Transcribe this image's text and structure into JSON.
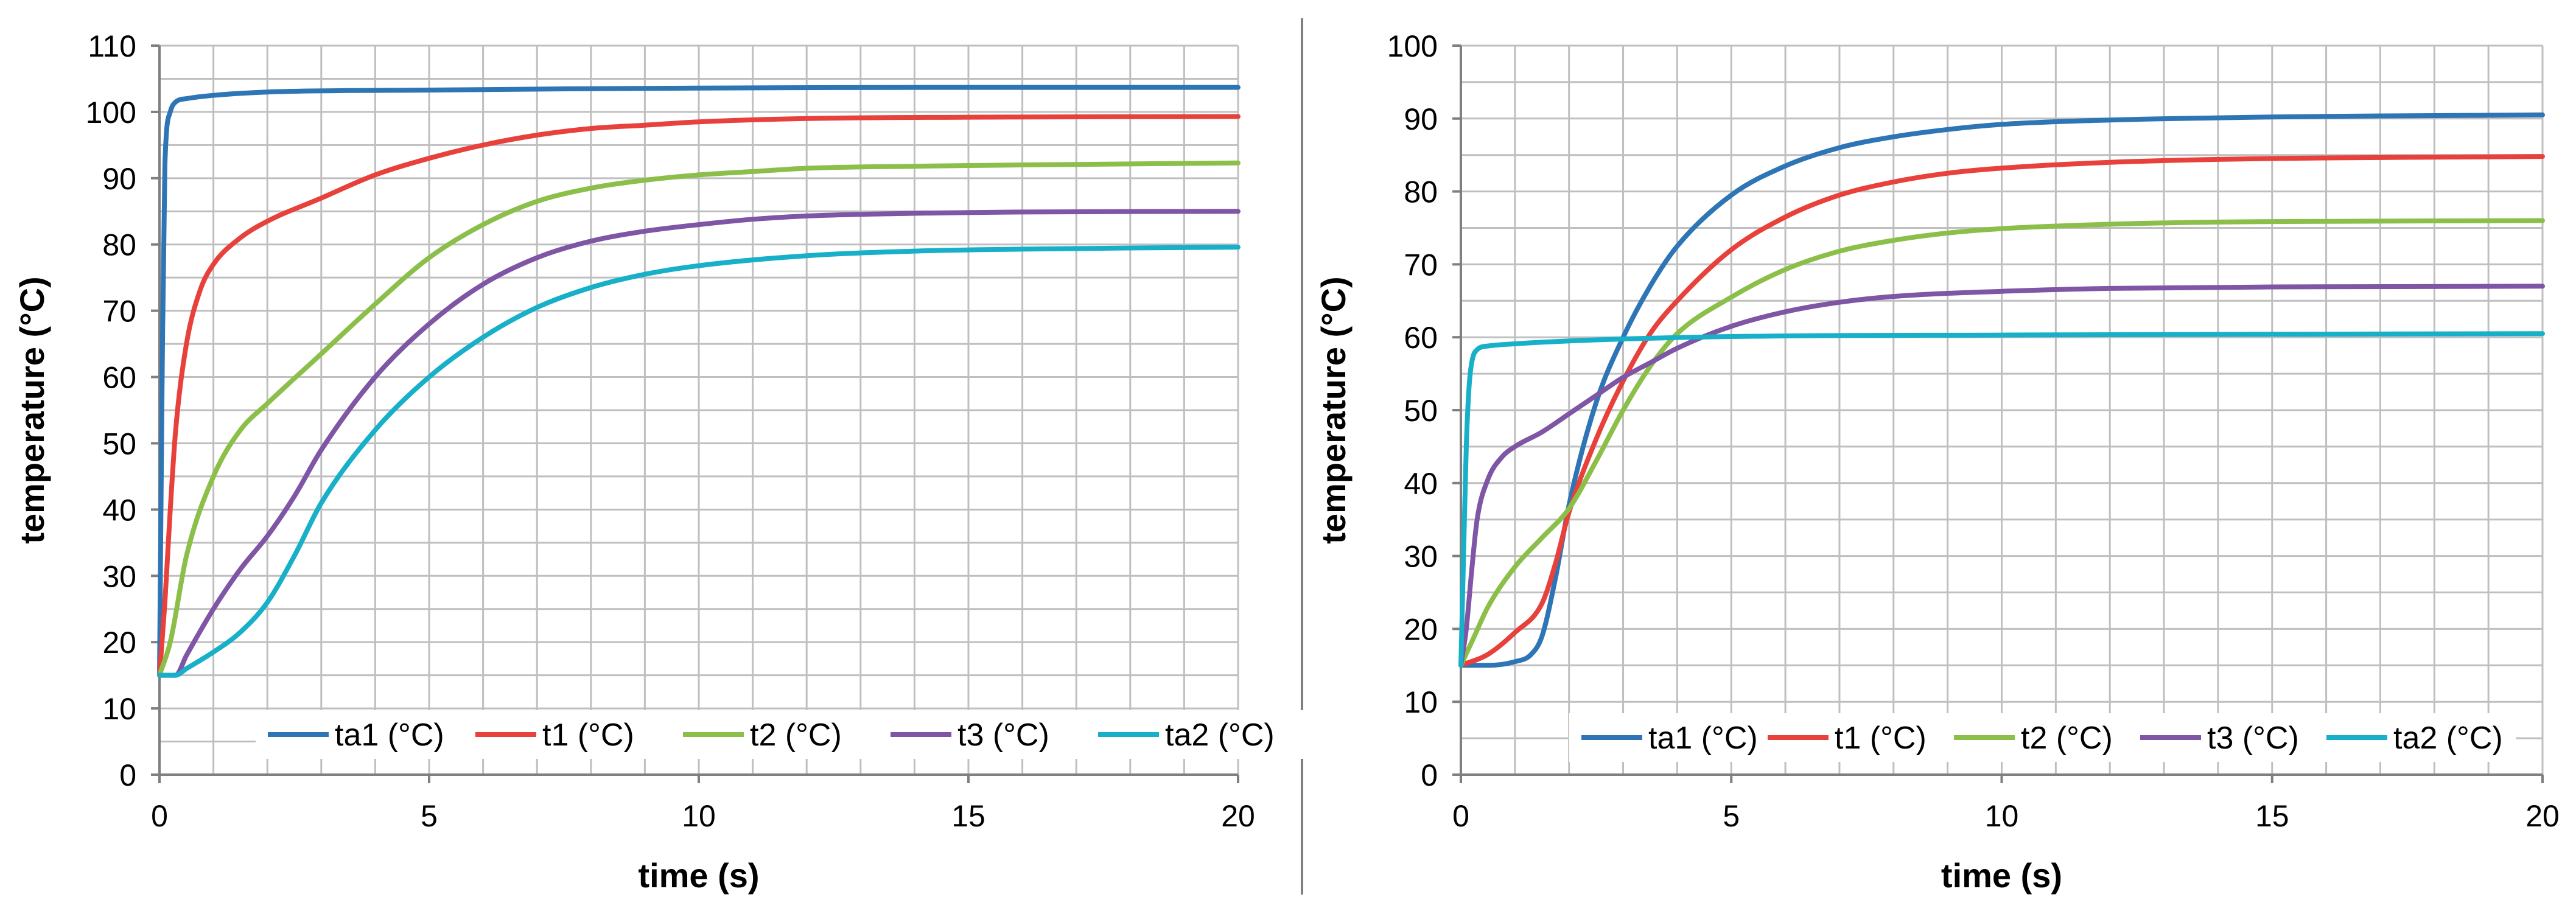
{
  "chart_data": [
    {
      "type": "line",
      "xlabel": "time (s)",
      "ylabel": "temperature (°C)",
      "xlim": [
        0,
        20
      ],
      "ylim": [
        0,
        110
      ],
      "xticks": [
        0,
        5,
        10,
        15,
        20
      ],
      "yticks": [
        0,
        10,
        20,
        30,
        40,
        50,
        60,
        70,
        80,
        90,
        100,
        110
      ],
      "x_minor_step": 1,
      "y_minor_step": 5,
      "grid": true,
      "legend_position": "bottom-right",
      "series": [
        {
          "name": "ta1 (°C)",
          "color": "#2e75b6",
          "x": [
            0,
            0.05,
            0.1,
            0.2,
            0.3,
            0.5,
            1,
            2,
            5,
            10,
            15,
            20
          ],
          "y": [
            15,
            60,
            92,
            100,
            101.5,
            102,
            102.5,
            103,
            103.3,
            103.6,
            103.7,
            103.7
          ]
        },
        {
          "name": "t1 (°C)",
          "color": "#e8413c",
          "x": [
            0,
            0.1,
            0.2,
            0.3,
            0.5,
            0.75,
            1,
            1.5,
            2,
            3,
            4,
            5,
            6,
            7,
            8,
            9,
            10,
            12,
            15,
            20
          ],
          "y": [
            15,
            26,
            40,
            52,
            65,
            73,
            77,
            81,
            83.5,
            87,
            90.5,
            93,
            95,
            96.5,
            97.5,
            98,
            98.5,
            99,
            99.2,
            99.3
          ]
        },
        {
          "name": "t2 (°C)",
          "color": "#8cbf4a",
          "x": [
            0,
            0.2,
            0.5,
            1,
            1.5,
            2,
            3,
            4,
            5,
            6,
            7,
            8,
            9,
            10,
            11,
            12,
            14,
            16,
            20
          ],
          "y": [
            15,
            20,
            33,
            45,
            52,
            56,
            63.5,
            71,
            78,
            83,
            86.5,
            88.5,
            89.7,
            90.5,
            91,
            91.5,
            91.8,
            92,
            92.3
          ]
        },
        {
          "name": "t3 (°C)",
          "color": "#7f55a5",
          "x": [
            0,
            0.3,
            0.5,
            1,
            1.5,
            2,
            2.5,
            3,
            4,
            5,
            6,
            7,
            8,
            9,
            10,
            11,
            12,
            14,
            16,
            20
          ],
          "y": [
            15,
            15,
            18,
            25,
            31,
            36,
            42,
            49,
            60,
            68,
            74,
            78,
            80.5,
            82,
            83,
            83.8,
            84.3,
            84.7,
            84.9,
            85
          ]
        },
        {
          "name": "ta2 (°C)",
          "color": "#17b0c8",
          "x": [
            0,
            0.3,
            0.5,
            1,
            1.5,
            2,
            2.5,
            3,
            4,
            5,
            6,
            7,
            8,
            9,
            10,
            12,
            14,
            16,
            20
          ],
          "y": [
            15,
            15,
            16,
            18.5,
            21.5,
            26,
            33,
            41,
            52,
            60,
            66,
            70.5,
            73.5,
            75.5,
            76.8,
            78.3,
            79,
            79.3,
            79.6
          ]
        }
      ]
    },
    {
      "type": "line",
      "xlabel": "time (s)",
      "ylabel": "temperature (°C)",
      "xlim": [
        0,
        20
      ],
      "ylim": [
        0,
        100
      ],
      "xticks": [
        0,
        5,
        10,
        15,
        20
      ],
      "yticks": [
        0,
        10,
        20,
        30,
        40,
        50,
        60,
        70,
        80,
        90,
        100
      ],
      "x_minor_step": 1,
      "y_minor_step": 5,
      "grid": true,
      "legend_position": "bottom-right",
      "series": [
        {
          "name": "ta1 (°C)",
          "color": "#2e75b6",
          "x": [
            0,
            0.5,
            1,
            1.3,
            1.5,
            1.75,
            2,
            2.5,
            3,
            3.5,
            4,
            5,
            6,
            7,
            8,
            9,
            10,
            12,
            14,
            16,
            18,
            20
          ],
          "y": [
            15,
            15,
            15.5,
            16.5,
            19,
            27,
            37,
            51,
            60,
            67,
            72.5,
            79.5,
            83.5,
            86,
            87.5,
            88.5,
            89.2,
            89.8,
            90.1,
            90.3,
            90.4,
            90.5
          ]
        },
        {
          "name": "t1 (°C)",
          "color": "#e8413c",
          "x": [
            0,
            0.5,
            1,
            1.5,
            1.75,
            2,
            2.5,
            3,
            3.5,
            4,
            5,
            6,
            7,
            8,
            9,
            10,
            12,
            14,
            16,
            18,
            20
          ],
          "y": [
            15,
            16.5,
            19.5,
            23.5,
            29,
            36,
            46,
            54,
            60.5,
            65,
            72,
            76.5,
            79.5,
            81.3,
            82.5,
            83.2,
            84,
            84.4,
            84.6,
            84.7,
            84.8
          ]
        },
        {
          "name": "t2 (°C)",
          "color": "#8cbf4a",
          "x": [
            0,
            0.25,
            0.5,
            1,
            1.5,
            2,
            2.5,
            3,
            3.5,
            4,
            5,
            6,
            7,
            8,
            9,
            10,
            12,
            14,
            16,
            20
          ],
          "y": [
            15,
            19,
            23,
            28.5,
            32.5,
            36.5,
            43,
            50,
            56,
            60.5,
            65.5,
            69.3,
            71.8,
            73.3,
            74.3,
            74.9,
            75.5,
            75.8,
            75.9,
            76
          ]
        },
        {
          "name": "t3 (°C)",
          "color": "#7f55a5",
          "x": [
            0,
            0.1,
            0.2,
            0.3,
            0.5,
            0.75,
            1,
            1.5,
            2,
            2.5,
            3,
            3.5,
            4,
            5,
            6,
            7,
            8,
            10,
            12,
            15,
            20
          ],
          "y": [
            15,
            20,
            28,
            35,
            40.5,
            43.5,
            45,
            47,
            49.5,
            52,
            54.5,
            56.5,
            58.5,
            61.5,
            63.5,
            64.8,
            65.6,
            66.3,
            66.7,
            66.9,
            67
          ]
        },
        {
          "name": "ta2 (°C)",
          "color": "#17b0c8",
          "x": [
            0,
            0.05,
            0.1,
            0.15,
            0.2,
            0.3,
            0.5,
            1,
            2,
            5,
            10,
            20
          ],
          "y": [
            15,
            30,
            45,
            53,
            56.5,
            58.3,
            58.8,
            59.1,
            59.5,
            60.1,
            60.3,
            60.5
          ]
        }
      ]
    }
  ]
}
